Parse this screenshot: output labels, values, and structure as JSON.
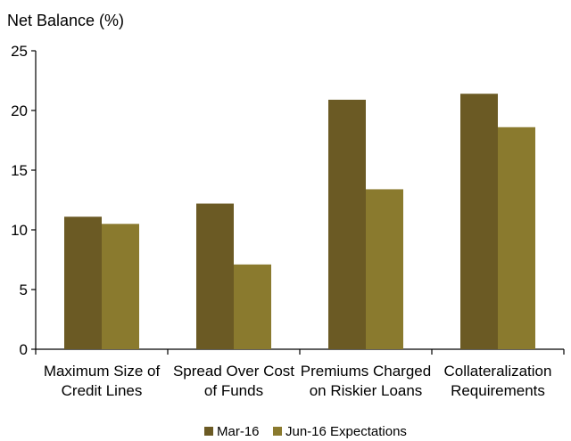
{
  "chart_data": {
    "type": "bar",
    "title": "",
    "ylabel": "Net Balance (%)",
    "xlabel": "",
    "ylim": [
      0,
      25
    ],
    "yticks": [
      0,
      5,
      10,
      15,
      20,
      25
    ],
    "grid": false,
    "legend_position": "bottom",
    "categories": [
      [
        "Maximum Size of",
        "Credit Lines"
      ],
      [
        "Spread Over Cost",
        "of Funds"
      ],
      [
        "Premiums Charged",
        "on Riskier Loans"
      ],
      [
        "Collateralization",
        "Requirements"
      ]
    ],
    "series": [
      {
        "name": "Mar-16",
        "color": "#6b5a24",
        "values": [
          11.1,
          12.2,
          20.9,
          21.4
        ]
      },
      {
        "name": "Jun-16 Expectations",
        "color": "#8a7a2e",
        "values": [
          10.5,
          7.1,
          13.4,
          18.6
        ]
      }
    ]
  }
}
